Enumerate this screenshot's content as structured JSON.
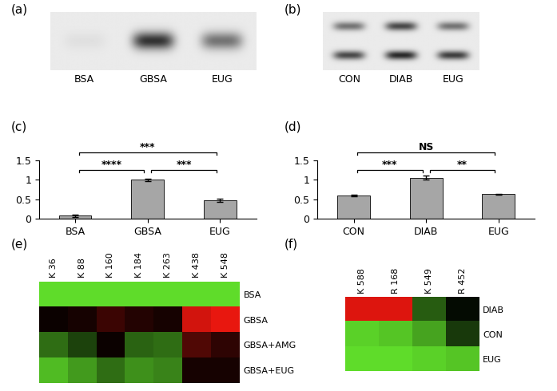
{
  "chart_data": [
    {
      "type": "blot",
      "title": "(a)",
      "categories": [
        "BSA",
        "GBSA",
        "EUG"
      ],
      "cells": [
        [
          0.05,
          0.85,
          0.55
        ]
      ]
    },
    {
      "type": "blot",
      "title": "(b)",
      "categories": [
        "CON",
        "DIAB",
        "EUG"
      ],
      "cells": [
        [
          0.55,
          0.75,
          0.55
        ],
        [
          0.75,
          0.9,
          0.8
        ]
      ]
    },
    {
      "type": "bar",
      "title": "(c)",
      "categories": [
        "BSA",
        "GBSA",
        "EUG"
      ],
      "values": [
        0.08,
        1.0,
        0.47
      ],
      "errors": [
        0.04,
        0.03,
        0.04
      ],
      "color": "#a6a6a6",
      "ylim": [
        0,
        1.5
      ],
      "yticks": [
        0,
        0.5,
        1,
        1.5
      ],
      "significance": [
        {
          "categories": [
            "BSA",
            "GBSA"
          ],
          "label": "****"
        },
        {
          "categories": [
            "GBSA",
            "EUG"
          ],
          "label": "***"
        },
        {
          "categories": [
            "BSA",
            "EUG"
          ],
          "label": "***"
        }
      ]
    },
    {
      "type": "bar",
      "title": "(d)",
      "categories": [
        "CON",
        "DIAB",
        "EUG"
      ],
      "values": [
        0.6,
        1.05,
        0.64
      ],
      "errors": [
        0.02,
        0.05,
        0.01
      ],
      "color": "#a6a6a6",
      "ylim": [
        0,
        1.5
      ],
      "yticks": [
        0,
        0.5,
        1,
        1.5
      ],
      "significance": [
        {
          "categories": [
            "CON",
            "DIAB"
          ],
          "label": "***"
        },
        {
          "categories": [
            "DIAB",
            "EUG"
          ],
          "label": "**"
        },
        {
          "categories": [
            "CON",
            "EUG"
          ],
          "label": "NS"
        }
      ]
    },
    {
      "type": "heatmap",
      "title": "(e)",
      "columns": [
        "K 36",
        "K 88",
        "K 160",
        "K 184",
        "K 263",
        "K 438",
        "K 548"
      ],
      "rows": [
        "BSA",
        "GBSA",
        "GBSA+AMG",
        "GBSA+EUG"
      ],
      "cells": [
        [
          -1,
          -1,
          -1,
          -1,
          -1,
          -1,
          -1
        ],
        [
          0.05,
          0.1,
          0.25,
          0.15,
          0.1,
          0.9,
          1.0
        ],
        [
          -0.5,
          -0.3,
          0.05,
          -0.45,
          -0.5,
          0.35,
          0.2
        ],
        [
          -0.85,
          -0.7,
          -0.5,
          -0.65,
          -0.6,
          0.1,
          0.1
        ]
      ]
    },
    {
      "type": "heatmap",
      "title": "(f)",
      "columns": [
        "K 588",
        "R 168",
        "K 549",
        "R 452"
      ],
      "rows": [
        "DIAB",
        "CON",
        "EUG"
      ],
      "cells": [
        [
          0.9,
          0.9,
          -0.4,
          -0.05
        ],
        [
          -0.9,
          -0.85,
          -0.7,
          -0.25
        ],
        [
          -0.95,
          -0.95,
          -0.9,
          -0.85
        ]
      ]
    }
  ]
}
